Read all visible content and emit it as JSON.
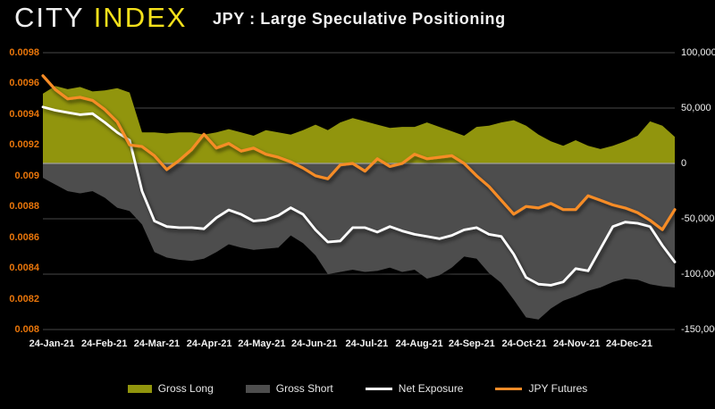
{
  "brand": {
    "logo_city": "CITY",
    "logo_index": "INDEX"
  },
  "header": {
    "title": "JPY : Large Speculative Positioning"
  },
  "legend": {
    "items": [
      {
        "label": "Gross Long"
      },
      {
        "label": "Gross Short"
      },
      {
        "label": "Net Exposure"
      },
      {
        "label": "JPY Futures"
      }
    ]
  },
  "chart_data": {
    "type": "combo",
    "title": "JPY : Large Speculative Positioning",
    "background": "#000000",
    "grid_color": "#474747",
    "zero_line_color": "#A0A0A0",
    "x_labels": [
      "24-Jan-21",
      "24-Feb-21",
      "24-Mar-21",
      "24-Apr-21",
      "24-May-21",
      "24-Jun-21",
      "24-Jul-21",
      "24-Aug-21",
      "24-Sep-21",
      "24-Oct-21",
      "24-Nov-21",
      "24-Dec-21"
    ],
    "left_axis": {
      "min": 0.008,
      "max": 0.0098,
      "tick_step": 0.0002,
      "color": "#E8750A",
      "ticks": [
        "0.0098",
        "0.0096",
        "0.0094",
        "0.0092",
        "0.009",
        "0.0088",
        "0.0086",
        "0.0084",
        "0.0082",
        "0.008"
      ]
    },
    "right_axis": {
      "min": -150000,
      "max": 100000,
      "tick_step": 50000,
      "color": "#F2F2F2",
      "ticks": [
        "100,000",
        "50,000",
        "0",
        "-50,000",
        "-100,000",
        "-150,000"
      ]
    },
    "series": [
      {
        "name": "Gross Long",
        "type": "area",
        "axis": "right",
        "color": "#91950D",
        "values": [
          63000,
          70000,
          67000,
          69000,
          65000,
          66000,
          68000,
          64000,
          28000,
          28000,
          27000,
          28000,
          28000,
          26000,
          28000,
          31000,
          28000,
          25000,
          30000,
          28000,
          26000,
          30000,
          35000,
          30000,
          37000,
          41000,
          38000,
          35000,
          32000,
          33000,
          33000,
          37000,
          33000,
          29000,
          25000,
          33000,
          34000,
          37000,
          39000,
          34000,
          26000,
          20000,
          16000,
          21000,
          16000,
          13000,
          16000,
          20000,
          25000,
          38000,
          34000,
          24000
        ]
      },
      {
        "name": "Gross Short",
        "type": "area",
        "axis": "right",
        "color": "#4E4E4E",
        "values": [
          -13000,
          -19000,
          -25000,
          -27000,
          -25000,
          -31000,
          -40000,
          -43000,
          -55000,
          -80000,
          -85000,
          -87000,
          -88000,
          -86000,
          -80000,
          -73000,
          -76000,
          -78000,
          -77000,
          -76000,
          -65000,
          -72000,
          -83000,
          -100000,
          -98000,
          -96000,
          -98000,
          -97000,
          -94000,
          -98000,
          -96000,
          -104000,
          -101000,
          -94000,
          -84000,
          -86000,
          -99000,
          -108000,
          -123000,
          -139000,
          -141000,
          -131000,
          -124000,
          -120000,
          -115000,
          -112000,
          -107000,
          -104000,
          -105000,
          -109000,
          -111000,
          -112000
        ]
      },
      {
        "name": "Net Exposure",
        "type": "line",
        "axis": "right",
        "color": "#FFFFFF",
        "values": [
          51000,
          48000,
          46000,
          44000,
          45000,
          37000,
          28000,
          21000,
          -25000,
          -52000,
          -57000,
          -58000,
          -58000,
          -59000,
          -49000,
          -42000,
          -46000,
          -52000,
          -51000,
          -47000,
          -40000,
          -46000,
          -60000,
          -71000,
          -70000,
          -58000,
          -58000,
          -62000,
          -57000,
          -61000,
          -64000,
          -66000,
          -68000,
          -65000,
          -60000,
          -58000,
          -64000,
          -66000,
          -82000,
          -103000,
          -109000,
          -110000,
          -107000,
          -95000,
          -97000,
          -77000,
          -57000,
          -53000,
          -54000,
          -57000,
          -74000,
          -89000
        ]
      },
      {
        "name": "JPY Futures",
        "type": "line",
        "axis": "left",
        "color": "#F68C28",
        "values": [
          0.00965,
          0.00956,
          0.0095,
          0.00951,
          0.00949,
          0.00943,
          0.00935,
          0.0092,
          0.00919,
          0.00913,
          0.00904,
          0.0091,
          0.00917,
          0.00927,
          0.00918,
          0.00921,
          0.00916,
          0.00918,
          0.00914,
          0.00912,
          0.00909,
          0.00905,
          0.009,
          0.00898,
          0.00907,
          0.00908,
          0.00903,
          0.00911,
          0.00906,
          0.00908,
          0.00914,
          0.00911,
          0.00912,
          0.00913,
          0.00908,
          0.009,
          0.00893,
          0.00884,
          0.00875,
          0.0088,
          0.00879,
          0.00882,
          0.00878,
          0.00878,
          0.00887,
          0.00884,
          0.00881,
          0.00879,
          0.00876,
          0.00871,
          0.00865,
          0.00878
        ]
      }
    ]
  }
}
